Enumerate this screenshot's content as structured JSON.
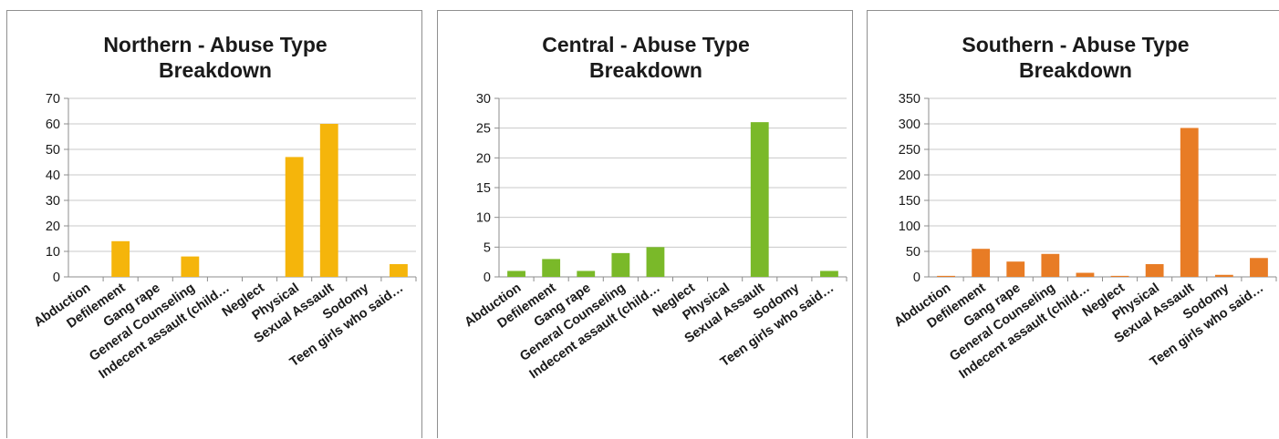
{
  "chart_data": [
    {
      "type": "bar",
      "title_lines": [
        "Northern - Abuse Type",
        "Breakdown"
      ],
      "categories": [
        "Abduction",
        "Defilement",
        "Gang rape",
        "General Counseling",
        "Indecent assault (child…",
        "Neglect",
        "Physical",
        "Sexual Assault",
        "Sodomy",
        "Teen girls who said…"
      ],
      "values": [
        0,
        14,
        0,
        8,
        0,
        0,
        47,
        60,
        0,
        5
      ],
      "ylim": [
        0,
        70
      ],
      "yticks": [
        "0",
        "10",
        "20",
        "30",
        "40",
        "50",
        "60",
        "70"
      ],
      "color": "#f5b50b",
      "grid": true,
      "legend": "none"
    },
    {
      "type": "bar",
      "title_lines": [
        "Central - Abuse Type",
        "Breakdown"
      ],
      "categories": [
        "Abduction",
        "Defilement",
        "Gang rape",
        "General Counseling",
        "Indecent assault (child…",
        "Neglect",
        "Physical",
        "Sexual Assault",
        "Sodomy",
        "Teen girls who said…"
      ],
      "values": [
        1,
        3,
        1,
        4,
        5,
        0,
        0,
        26,
        0,
        1
      ],
      "ylim": [
        0,
        30
      ],
      "yticks": [
        "0",
        "5",
        "10",
        "15",
        "20",
        "25",
        "30"
      ],
      "color": "#7ab929",
      "grid": true,
      "legend": "none"
    },
    {
      "type": "bar",
      "title_lines": [
        "Southern - Abuse Type",
        "Breakdown"
      ],
      "categories": [
        "Abduction",
        "Defilement",
        "Gang rape",
        "General Counseling",
        "Indecent assault (child…",
        "Neglect",
        "Physical",
        "Sexual Assault",
        "Sodomy",
        "Teen girls who said…"
      ],
      "values": [
        2,
        55,
        30,
        45,
        8,
        2,
        25,
        292,
        4,
        37
      ],
      "ylim": [
        0,
        350
      ],
      "yticks": [
        "0",
        "50",
        "100",
        "150",
        "200",
        "250",
        "300",
        "350"
      ],
      "color": "#e87c25",
      "grid": true,
      "legend": "none"
    }
  ]
}
